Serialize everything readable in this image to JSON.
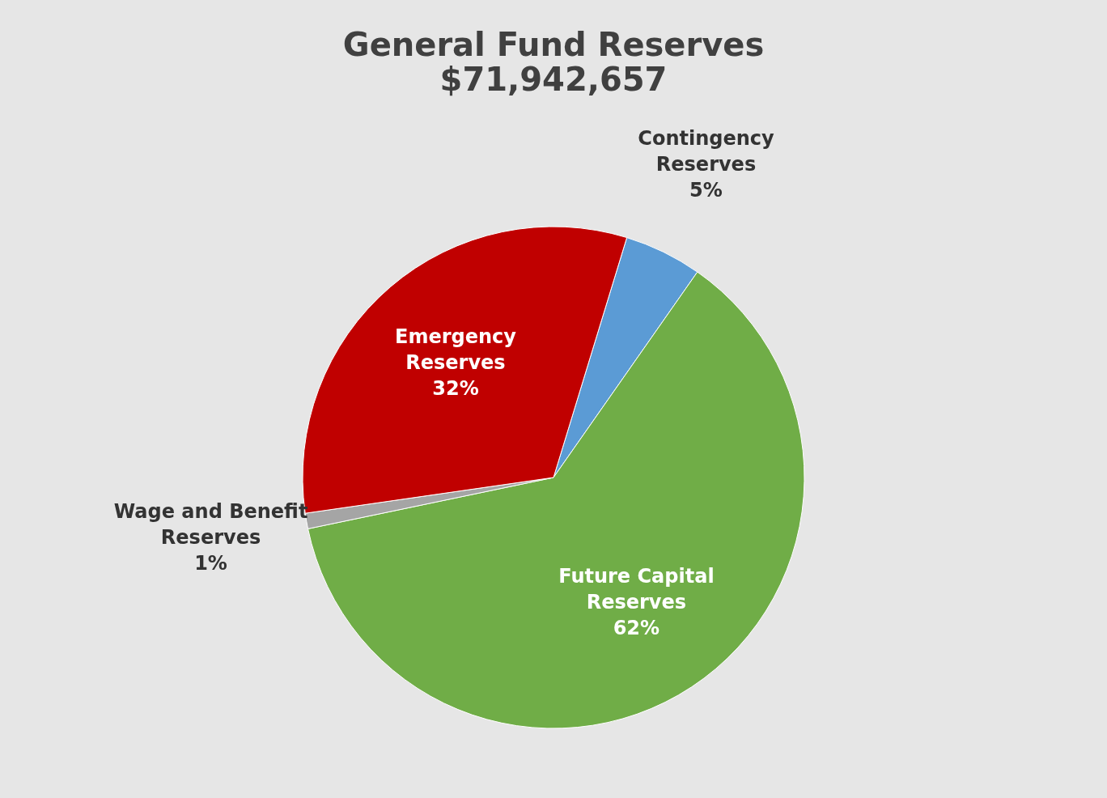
{
  "chart_data": {
    "type": "pie",
    "title": "General Fund Reserves",
    "subtitle": "$71,942,657",
    "categories": [
      "Contingency Reserves",
      "Future Capital Reserves",
      "Wage and Benefit Reserves",
      "Emergency Reserves"
    ],
    "values": [
      5,
      62,
      1,
      32
    ],
    "colors": [
      "#5b9bd5",
      "#70ad47",
      "#a5a5a5",
      "#c00000"
    ],
    "value_labels": [
      "5%",
      "62%",
      "1%",
      "32%"
    ],
    "legend": false
  }
}
